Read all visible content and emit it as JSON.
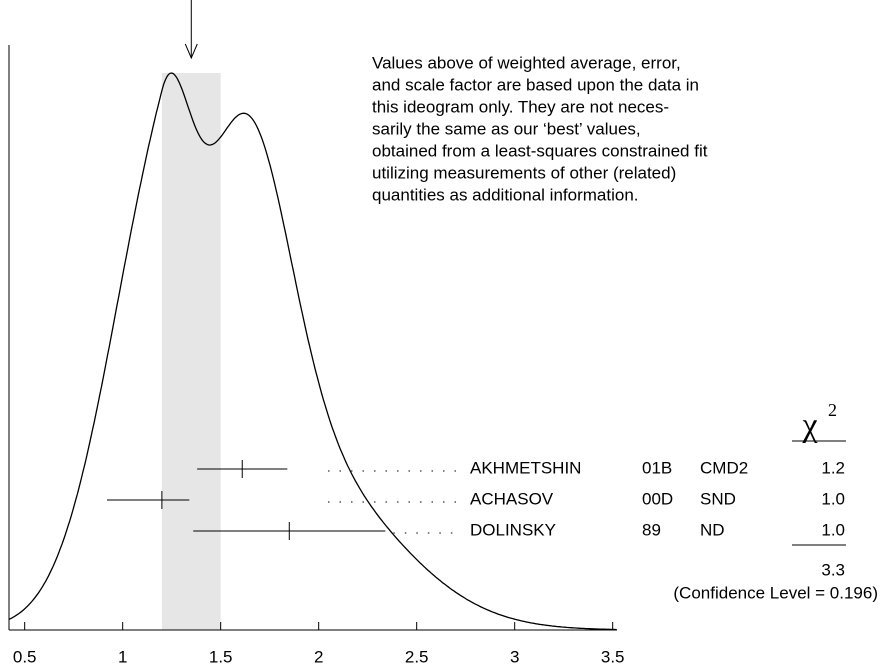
{
  "chart_data": {
    "type": "ideogram",
    "xlim": [
      0.42,
      3.52
    ],
    "xticks": [
      0.5,
      1,
      1.5,
      2,
      2.5,
      3,
      3.5
    ],
    "weighted_average": {
      "value": 1.35,
      "error": 0.15
    },
    "note_lines": [
      "Values above of weighted average, error,",
      "and scale factor are based upon the data in",
      "this ideogram only.  They are not neces-",
      "sarily the same as our ‘best’ values,",
      "obtained from a least-squares constrained fit",
      "utilizing measurements of other (related)",
      "quantities as additional information."
    ],
    "chi2_symbol": "χ",
    "chi2_exponent": "2",
    "measurements": [
      {
        "name": "AKHMETSHIN",
        "code": "01B",
        "experiment": "CMD2",
        "value": 1.61,
        "error_low": 0.23,
        "error_high": 0.23,
        "chi2": {
          "value": 1.2,
          "label": "1.2"
        }
      },
      {
        "name": "ACHASOV",
        "code": "00D",
        "experiment": "SND",
        "value": 1.2,
        "error_low": 0.28,
        "error_high": 0.14,
        "chi2": {
          "value": 1,
          "label": "1.0"
        }
      },
      {
        "name": "DOLINSKY",
        "code": "89",
        "experiment": "ND",
        "value": 1.85,
        "error_low": 0.49,
        "error_high": 0.49,
        "chi2": {
          "value": 1,
          "label": "1.0"
        }
      }
    ],
    "chi2_total": 3.3,
    "confidence_level_text": "(Confidence Level = 0.196)"
  }
}
